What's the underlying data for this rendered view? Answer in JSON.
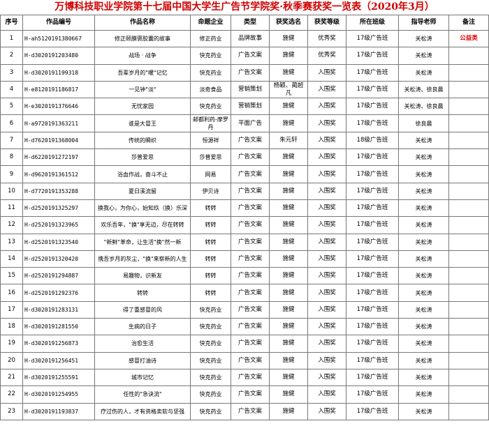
{
  "header": {
    "title": "万博科技职业学院第十七届中国大学生广告节学院奖·秋季赛获奖一览表（2020年3月）"
  },
  "table": {
    "columns": [
      "序号",
      "作品编号",
      "作品名称",
      "命题企业",
      "类型",
      "获奖选名",
      "获奖等级",
      "所在班级",
      "指导老师",
      "备注"
    ],
    "rows": [
      [
        "1",
        "H-ah5120191380667",
        "修正颐膜褒胶囊的故事",
        "修正药业",
        "品牌故事",
        "施健",
        "优秀奖",
        "17级广告班",
        "关松涛",
        "公益类"
      ],
      [
        "2",
        "H-d3020191203480",
        "战场 · 战争",
        "快克药业",
        "广告文案",
        "施健",
        "优秀奖",
        "17级广告班",
        "关松涛",
        ""
      ],
      [
        "3",
        "H-d3020191199318",
        "吾辈岁月的\"暖\"记忆",
        "快克药业",
        "广告文案",
        "施健",
        "入围奖",
        "17级广告班",
        "关松涛",
        ""
      ],
      [
        "4",
        "H-e8120191186817",
        "一见钟\"淡\"",
        "淡奇食品",
        "营销策划",
        "杨颖、蔺超凡",
        "入围奖",
        "17级广告班",
        "关松涛、徐良晨",
        ""
      ],
      [
        "5",
        "H-e3020191376646",
        "无忧家园",
        "快克药业",
        "营销策划",
        "施健",
        "入围奖",
        "17级广告班",
        "关松涛、徐良晨",
        ""
      ],
      [
        "6",
        "H-a9720191363211",
        "谁是大冒王",
        "邮都利药-摩罗丹",
        "平面广告",
        "施健",
        "入围奖",
        "17级广告班",
        "徐良晨",
        ""
      ],
      [
        "7",
        "H-d7620191368004",
        "传统的瞬织",
        "恒源祥",
        "广告文案",
        "朱元轩",
        "入围奖",
        "18级广告班",
        "关松涛",
        ""
      ],
      [
        "8",
        "H-d6220191272197",
        "莎普爱思",
        "莎普爱思",
        "广告文案",
        "施健",
        "入围奖",
        "17级广告班",
        "关松涛",
        ""
      ],
      [
        "9",
        "H-d9620191361512",
        "浴血作战，奋斗不止",
        "网易",
        "广告文案",
        "施健",
        "入围奖",
        "17级广告班",
        "关松涛",
        ""
      ],
      [
        "10",
        "H-d7720191353288",
        "夏日溪流留",
        "伊贝诗",
        "广告文案",
        "施健",
        "入围奖",
        "17级广告班",
        "关松涛",
        ""
      ],
      [
        "11",
        "H-d2520191325297",
        "换我心，为你心，始知玖（换）乐深",
        "转转",
        "广告文案",
        "施健",
        "入围奖",
        "17级广告班",
        "关松涛",
        ""
      ],
      [
        "12",
        "H-d2520191323965",
        "欢乐吾年，\"换\"享无边，尽在转转",
        "转转",
        "广告文案",
        "施健",
        "入围奖",
        "17级广告班",
        "关松涛",
        ""
      ],
      [
        "13",
        "H-d2520191323540",
        "\"新鲜\"革命，让生活\"换\"然一新",
        "转转",
        "广告文案",
        "施健",
        "入围奖",
        "17级广告班",
        "关松涛",
        ""
      ],
      [
        "14",
        "H-d2520191320420",
        "携吾岁月的灰尘，\"换\"来崭新的人生",
        "转转",
        "广告文案",
        "施健",
        "入围奖",
        "17级广告班",
        "关松涛",
        ""
      ],
      [
        "15",
        "H-d2520191294887",
        "易趣物，识新友",
        "转转",
        "广告文案",
        "施健",
        "入围奖",
        "17级广告班",
        "关松涛",
        ""
      ],
      [
        "16",
        "H-d2520191292376",
        "转转",
        "转转",
        "广告文案",
        "施健",
        "入围奖",
        "17级广告班",
        "关松涛",
        ""
      ],
      [
        "17",
        "H-d3020191283131",
        "得了重感冒的风",
        "快克药业",
        "广告文案",
        "施健",
        "入围奖",
        "17级广告班",
        "关松涛",
        ""
      ],
      [
        "18",
        "H-d3020191281550",
        "生病的日子",
        "快克药业",
        "广告文案",
        "施健",
        "入围奖",
        "17级广告班",
        "关松涛",
        ""
      ],
      [
        "19",
        "H-d3020191256873",
        "治愈生活",
        "快克药业",
        "广告文案",
        "施健",
        "入围奖",
        "17级广告班",
        "关松涛",
        ""
      ],
      [
        "20",
        "H-d3020191256451",
        "感冒打油诗",
        "快克药业",
        "广告文案",
        "施健",
        "入围奖",
        "17级广告班",
        "关松涛",
        ""
      ],
      [
        "21",
        "H-d3020191255591",
        "城市记忆",
        "快克药业",
        "广告文案",
        "施健",
        "入围奖",
        "17级广告班",
        "关松涛",
        ""
      ],
      [
        "22",
        "H-d3020191254955",
        "任性的\"急诀流\"",
        "快克药业",
        "广告文案",
        "施健",
        "入围奖",
        "17级广告班",
        "关松涛",
        ""
      ],
      [
        "23",
        "H-d3020191193837",
        "疗过伤的人，才有资格卖软与坚强",
        "快克药业",
        "广告文案",
        "施健",
        "入围奖",
        "17级广告班",
        "关松涛",
        ""
      ]
    ]
  }
}
